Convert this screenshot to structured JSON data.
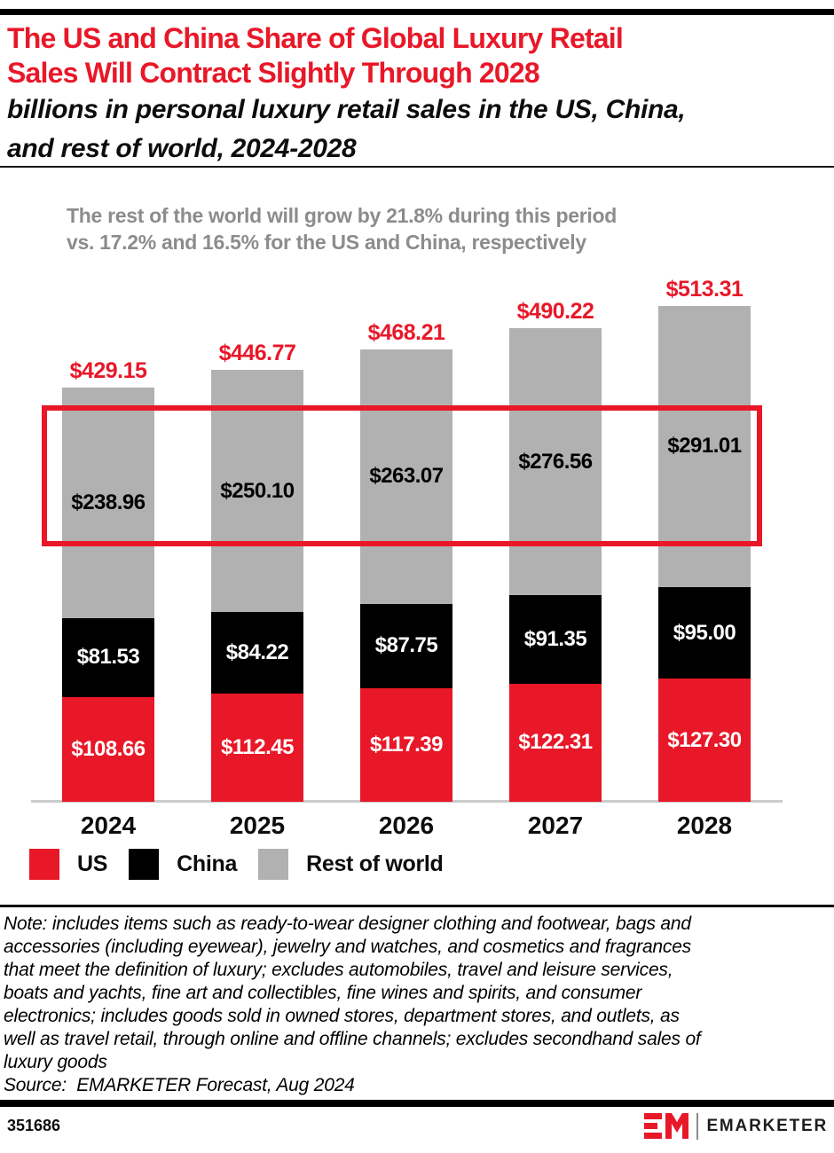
{
  "colors": {
    "accent_red": "#E81828",
    "bar_black": "#000000",
    "bar_gray": "#B1B1B1",
    "annotation_gray": "#8C8C8C",
    "axis_line_gray": "#CBCBCB"
  },
  "header": {
    "title_lines": [
      "The US and China Share of Global Luxury Retail",
      "Sales Will Contract Slightly Through 2028"
    ],
    "subtitle_lines": [
      "billions in personal luxury retail sales in the US, China,",
      "and rest of world, 2024-2028"
    ]
  },
  "annotation": {
    "lines": [
      "The rest of the world will grow by 21.8% during this period",
      "vs. 17.2% and 16.5% for the US and China, respectively"
    ]
  },
  "chart_data": {
    "type": "bar",
    "stacked": true,
    "unit": "US$ billions",
    "categories": [
      "2024",
      "2025",
      "2026",
      "2027",
      "2028"
    ],
    "series": [
      {
        "name": "US",
        "color": "#E81828",
        "label_color": "#FFFFFF",
        "values": [
          108.66,
          112.45,
          117.39,
          122.31,
          127.3
        ]
      },
      {
        "name": "China",
        "color": "#000000",
        "label_color": "#FFFFFF",
        "values": [
          81.53,
          84.22,
          87.75,
          91.35,
          95.0
        ]
      },
      {
        "name": "Rest of world",
        "color": "#B1B1B1",
        "label_color": "#000000",
        "values": [
          238.96,
          250.1,
          263.07,
          276.56,
          291.01
        ]
      }
    ],
    "totals": [
      429.15,
      446.77,
      468.21,
      490.22,
      513.31
    ],
    "value_prefix": "$",
    "legend_position": "bottom-left",
    "gridlines": false,
    "ylim": [
      0,
      513.31
    ],
    "highlight": {
      "shape": "red-outline-rectangle",
      "covers": "Rest of world segment value labels across all years"
    }
  },
  "note": {
    "lines": [
      "Note: includes items such as ready-to-wear designer clothing and footwear, bags and",
      "accessories (including eyewear), jewelry and watches, and cosmetics and fragrances",
      "that meet the definition of luxury; excludes automobiles, travel and leisure services,",
      "boats and yachts, fine art and collectibles, fine wines and spirits, and consumer",
      "electronics; includes goods sold in owned stores, department stores, and outlets, as",
      "well as travel retail, through online and offline channels; excludes secondhand sales of",
      "luxury goods"
    ],
    "source": "Source:  EMARKETER Forecast, Aug 2024"
  },
  "footer": {
    "chart_id": "351686",
    "brand_wordmark": "EMARKETER"
  }
}
